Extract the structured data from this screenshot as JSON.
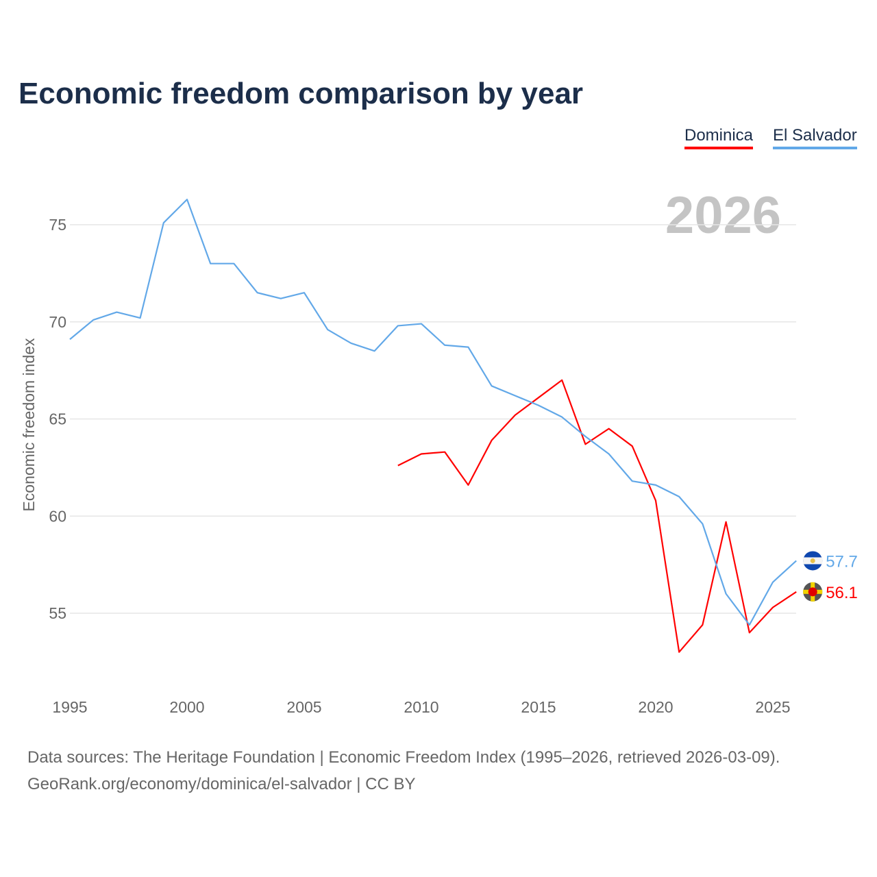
{
  "chart_data": {
    "type": "line",
    "title": "Economic freedom comparison by year",
    "xlabel": "",
    "ylabel": "Economic freedom index",
    "xlim": [
      1995,
      2026
    ],
    "ylim": [
      51.5,
      77.5
    ],
    "x_ticks": [
      "1995",
      "2000",
      "2005",
      "2010",
      "2015",
      "2020",
      "2025"
    ],
    "y_ticks": [
      "55",
      "60",
      "65",
      "70",
      "75"
    ],
    "grid": true,
    "legend_position": "top-right",
    "current_year_label": "2026",
    "series": [
      {
        "name": "Dominica",
        "color": "#ff0000",
        "end_label": "56.1",
        "x": [
          2009,
          2010,
          2011,
          2012,
          2013,
          2014,
          2015,
          2016,
          2017,
          2018,
          2019,
          2020,
          2021,
          2022,
          2023,
          2024,
          2025,
          2026
        ],
        "values": [
          62.6,
          63.2,
          63.3,
          61.6,
          63.9,
          65.2,
          66.1,
          67.0,
          63.7,
          64.5,
          63.6,
          60.8,
          53.0,
          54.4,
          59.7,
          54.0,
          55.3,
          56.1
        ]
      },
      {
        "name": "El Salvador",
        "color": "#62a8e8",
        "end_label": "57.7",
        "x": [
          1995,
          1996,
          1997,
          1998,
          1999,
          2000,
          2001,
          2002,
          2003,
          2004,
          2005,
          2006,
          2007,
          2008,
          2009,
          2010,
          2011,
          2012,
          2013,
          2014,
          2015,
          2016,
          2017,
          2018,
          2019,
          2020,
          2021,
          2022,
          2023,
          2024,
          2025,
          2026
        ],
        "values": [
          69.1,
          70.1,
          70.5,
          70.2,
          75.1,
          76.3,
          73.0,
          73.0,
          71.5,
          71.2,
          71.5,
          69.6,
          68.9,
          68.5,
          69.8,
          69.9,
          68.8,
          68.7,
          66.7,
          66.2,
          65.7,
          65.1,
          64.1,
          63.2,
          61.8,
          61.6,
          61.0,
          59.6,
          56.0,
          54.4,
          56.6,
          57.7
        ]
      }
    ]
  },
  "footer": {
    "line1": "Data sources: The Heritage Foundation | Economic Freedom Index (1995–2026, retrieved 2026-03-09).",
    "line2": "GeoRank.org/economy/dominica/el-salvador | CC BY"
  }
}
